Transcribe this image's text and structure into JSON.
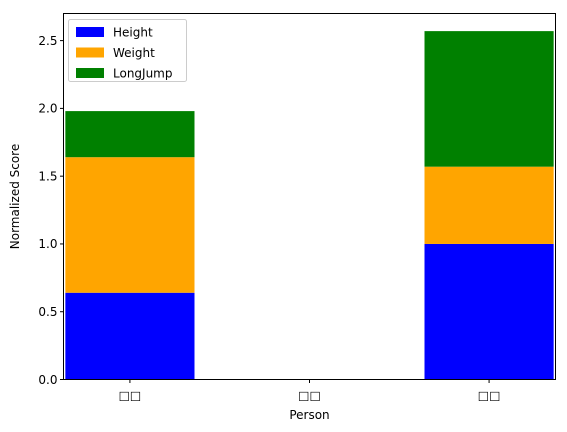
{
  "chart_data": {
    "type": "bar",
    "stacked": true,
    "categories": [
      "□□",
      "□□",
      "□□"
    ],
    "series": [
      {
        "name": "Height",
        "color": "#0000ff",
        "values": [
          0.64,
          0.0,
          1.0
        ]
      },
      {
        "name": "Weight",
        "color": "#ffa500",
        "values": [
          1.0,
          0.0,
          0.57
        ]
      },
      {
        "name": "LongJump",
        "color": "#008000",
        "values": [
          0.34,
          0.0,
          1.0
        ]
      }
    ],
    "xlabel": "Person",
    "ylabel": "Normalized Score",
    "ylim": [
      0,
      2.7
    ],
    "yticks": [
      "0.0",
      "0.5",
      "1.0",
      "1.5",
      "2.0",
      "2.5"
    ],
    "grid": false,
    "legend_position": "top-left"
  }
}
